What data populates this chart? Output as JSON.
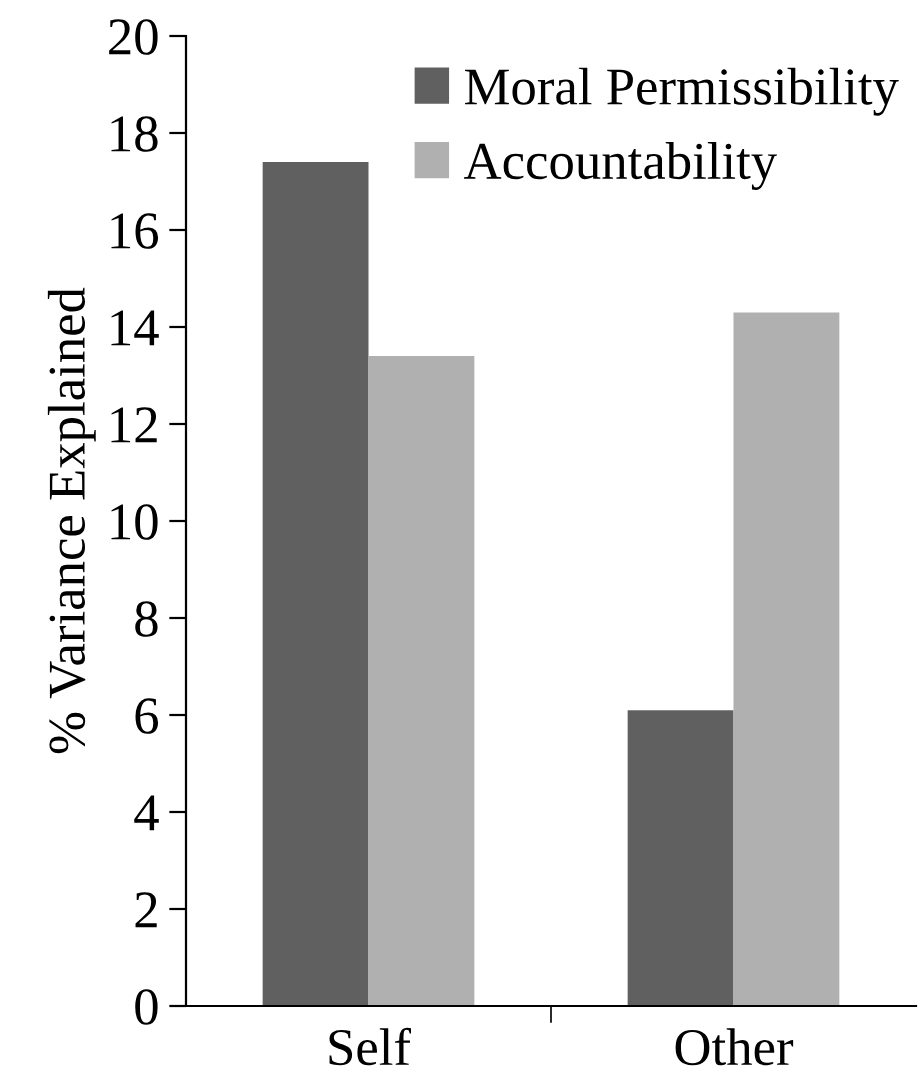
{
  "chart_data": {
    "type": "bar",
    "ylabel": "% Variance Explained",
    "categories": [
      "Self",
      "Other"
    ],
    "series": [
      {
        "name": "Moral Permissibility",
        "color": "#606060",
        "values": [
          17.4,
          6.1
        ]
      },
      {
        "name": "Accountability",
        "color": "#b0b0b0",
        "values": [
          13.4,
          14.3
        ]
      }
    ],
    "ylim": [
      0,
      20
    ],
    "yticks": [
      0,
      2,
      4,
      6,
      8,
      10,
      12,
      14,
      16,
      18,
      20
    ],
    "grid": false,
    "legend": "top right"
  }
}
